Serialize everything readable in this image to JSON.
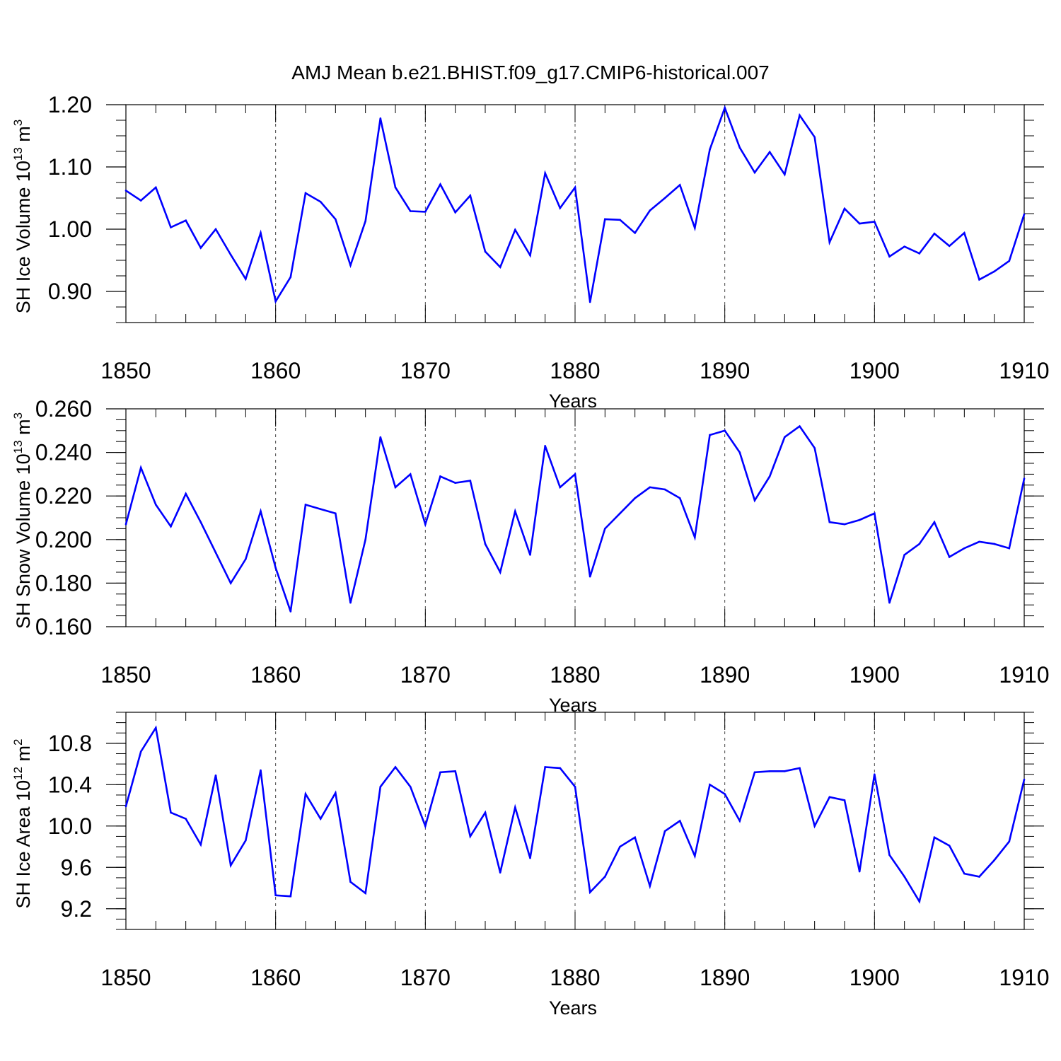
{
  "title": "AMJ Mean b.e21.BHIST.f09_g17.CMIP6-historical.007",
  "line_color": "#0000ff",
  "chart_data": [
    {
      "type": "line",
      "name": "ice-volume",
      "ylabel_main": "SH Ice Volume 10",
      "ylabel_exp": "13",
      "ylabel_unit": " m",
      "ylabel_unit_exp": "3",
      "xlabel": "Years",
      "xlim": [
        1850,
        1910
      ],
      "ylim": [
        0.85,
        1.2
      ],
      "xticks": [
        "1850",
        "1860",
        "1870",
        "1880",
        "1890",
        "1900",
        "1910"
      ],
      "yticks": [
        {
          "value": 0.9,
          "label": "0.90"
        },
        {
          "value": 1.0,
          "label": "1.00"
        },
        {
          "value": 1.1,
          "label": "1.10"
        },
        {
          "value": 1.2,
          "label": "1.20"
        }
      ],
      "x": [
        1850,
        1851,
        1852,
        1853,
        1854,
        1855,
        1856,
        1857,
        1858,
        1859,
        1860,
        1861,
        1862,
        1863,
        1864,
        1865,
        1866,
        1867,
        1868,
        1869,
        1870,
        1871,
        1872,
        1873,
        1874,
        1875,
        1876,
        1877,
        1878,
        1879,
        1880,
        1881,
        1882,
        1883,
        1884,
        1885,
        1886,
        1887,
        1888,
        1889,
        1890,
        1891,
        1892,
        1893,
        1894,
        1895,
        1896,
        1897,
        1898,
        1899,
        1900,
        1901,
        1902,
        1903,
        1904,
        1905,
        1906,
        1907,
        1908,
        1909,
        1910
      ],
      "values": [
        1.062,
        1.046,
        1.067,
        1.003,
        1.014,
        0.97,
        1.0,
        0.959,
        0.92,
        0.994,
        0.884,
        0.923,
        1.058,
        1.044,
        1.016,
        0.942,
        1.013,
        1.178,
        1.067,
        1.029,
        1.028,
        1.072,
        1.027,
        1.054,
        0.964,
        0.939,
        0.999,
        0.958,
        1.09,
        1.034,
        1.067,
        0.883,
        1.016,
        1.015,
        0.994,
        1.03,
        1.05,
        1.071,
        1.002,
        1.128,
        1.195,
        1.131,
        1.091,
        1.124,
        1.088,
        1.183,
        1.148,
        0.979,
        1.033,
        1.009,
        1.012,
        0.956,
        0.972,
        0.961,
        0.993,
        0.973,
        0.994,
        0.919,
        0.932,
        0.949,
        1.024
      ]
    },
    {
      "type": "line",
      "name": "snow-volume",
      "ylabel_main": "SH Snow Volume 10",
      "ylabel_exp": "13",
      "ylabel_unit": " m",
      "ylabel_unit_exp": "3",
      "xlabel": "Years",
      "xlim": [
        1850,
        1910
      ],
      "ylim": [
        0.16,
        0.26
      ],
      "xticks": [
        "1850",
        "1860",
        "1870",
        "1880",
        "1890",
        "1900",
        "1910"
      ],
      "yticks": [
        {
          "value": 0.16,
          "label": "0.160"
        },
        {
          "value": 0.18,
          "label": "0.180"
        },
        {
          "value": 0.2,
          "label": "0.200"
        },
        {
          "value": 0.22,
          "label": "0.220"
        },
        {
          "value": 0.24,
          "label": "0.240"
        },
        {
          "value": 0.26,
          "label": "0.260"
        }
      ],
      "x": [
        1850,
        1851,
        1852,
        1853,
        1854,
        1855,
        1856,
        1857,
        1858,
        1859,
        1860,
        1861,
        1862,
        1863,
        1864,
        1865,
        1866,
        1867,
        1868,
        1869,
        1870,
        1871,
        1872,
        1873,
        1874,
        1875,
        1876,
        1877,
        1878,
        1879,
        1880,
        1881,
        1882,
        1883,
        1884,
        1885,
        1886,
        1887,
        1888,
        1889,
        1890,
        1891,
        1892,
        1893,
        1894,
        1895,
        1896,
        1897,
        1898,
        1899,
        1900,
        1901,
        1902,
        1903,
        1904,
        1905,
        1906,
        1907,
        1908,
        1909,
        1910
      ],
      "values": [
        0.207,
        0.233,
        0.216,
        0.206,
        0.221,
        0.208,
        0.194,
        0.18,
        0.191,
        0.213,
        0.187,
        0.167,
        0.216,
        0.214,
        0.212,
        0.171,
        0.2,
        0.247,
        0.224,
        0.23,
        0.207,
        0.229,
        0.226,
        0.227,
        0.198,
        0.185,
        0.213,
        0.193,
        0.243,
        0.224,
        0.23,
        0.183,
        0.205,
        0.212,
        0.219,
        0.224,
        0.223,
        0.219,
        0.201,
        0.248,
        0.25,
        0.24,
        0.218,
        0.229,
        0.247,
        0.252,
        0.242,
        0.208,
        0.207,
        0.209,
        0.212,
        0.171,
        0.193,
        0.198,
        0.208,
        0.192,
        0.196,
        0.199,
        0.198,
        0.196,
        0.228
      ]
    },
    {
      "type": "line",
      "name": "ice-area",
      "ylabel_main": "SH Ice Area 10",
      "ylabel_exp": "12",
      "ylabel_unit": " m",
      "ylabel_unit_exp": "2",
      "xlabel": "Years",
      "xlim": [
        1850,
        1910
      ],
      "ylim": [
        9.0,
        11.1
      ],
      "xticks": [
        "1850",
        "1860",
        "1870",
        "1880",
        "1890",
        "1900",
        "1910"
      ],
      "yticks": [
        {
          "value": 9.2,
          "label": "9.2"
        },
        {
          "value": 9.6,
          "label": "9.6"
        },
        {
          "value": 10.0,
          "label": "10.0"
        },
        {
          "value": 10.4,
          "label": "10.4"
        },
        {
          "value": 10.8,
          "label": "10.8"
        }
      ],
      "x": [
        1850,
        1851,
        1852,
        1853,
        1854,
        1855,
        1856,
        1857,
        1858,
        1859,
        1860,
        1861,
        1862,
        1863,
        1864,
        1865,
        1866,
        1867,
        1868,
        1869,
        1870,
        1871,
        1872,
        1873,
        1874,
        1875,
        1876,
        1877,
        1878,
        1879,
        1880,
        1881,
        1882,
        1883,
        1884,
        1885,
        1886,
        1887,
        1888,
        1889,
        1890,
        1891,
        1892,
        1893,
        1894,
        1895,
        1896,
        1897,
        1898,
        1899,
        1900,
        1901,
        1902,
        1903,
        1904,
        1905,
        1906,
        1907,
        1908,
        1909,
        1910
      ],
      "values": [
        10.19,
        10.72,
        10.95,
        10.13,
        10.07,
        9.82,
        10.49,
        9.62,
        9.86,
        10.54,
        9.33,
        9.32,
        10.31,
        10.07,
        10.32,
        9.46,
        9.35,
        10.38,
        10.57,
        10.38,
        10.0,
        10.52,
        10.53,
        9.9,
        10.13,
        9.55,
        10.18,
        9.69,
        10.57,
        10.56,
        10.38,
        9.36,
        9.51,
        9.8,
        9.89,
        9.42,
        9.95,
        10.05,
        9.71,
        10.4,
        10.31,
        10.05,
        10.52,
        10.53,
        10.53,
        10.56,
        10.0,
        10.28,
        10.25,
        9.56,
        10.5,
        9.72,
        9.51,
        9.27,
        9.89,
        9.81,
        9.54,
        9.51,
        9.67,
        9.85,
        10.45
      ]
    }
  ]
}
